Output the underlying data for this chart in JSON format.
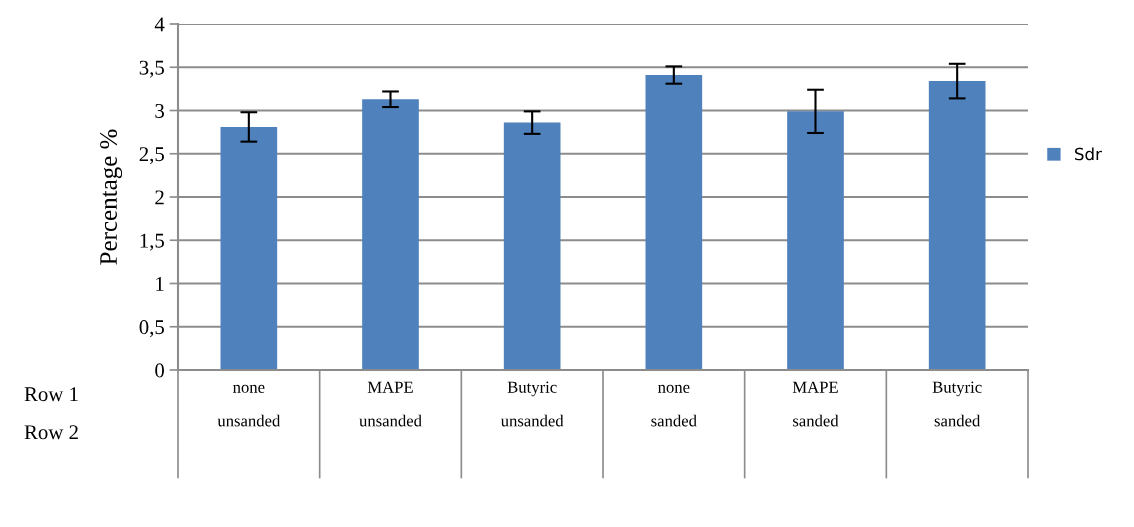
{
  "chart_data": {
    "type": "bar",
    "ylabel": "Percentage %",
    "categories": [
      "none\nunsanded",
      "MAPE\nunsanded",
      "Butyric\nunsanded",
      "none\nsanded",
      "MAPE\nsanded",
      "Butyric\nsanded"
    ],
    "series": [
      {
        "name": "Sdr",
        "color": "#4f81bd",
        "values": [
          2.81,
          3.13,
          2.86,
          3.41,
          2.99,
          3.34
        ],
        "errors": [
          0.17,
          0.09,
          0.13,
          0.1,
          0.25,
          0.2
        ]
      }
    ],
    "ylim": [
      0,
      4
    ],
    "yticks": [
      0,
      {
        "value": 0.5,
        "label": "0,5"
      },
      1,
      {
        "value": 1.5,
        "label": "1,5"
      },
      2,
      {
        "value": 2.5,
        "label": "2,5"
      },
      3,
      {
        "value": 3.5,
        "label": "3,5"
      },
      4
    ],
    "annotations": [
      "Row 1",
      "Row 2"
    ],
    "grid": "y",
    "legend": "right"
  }
}
